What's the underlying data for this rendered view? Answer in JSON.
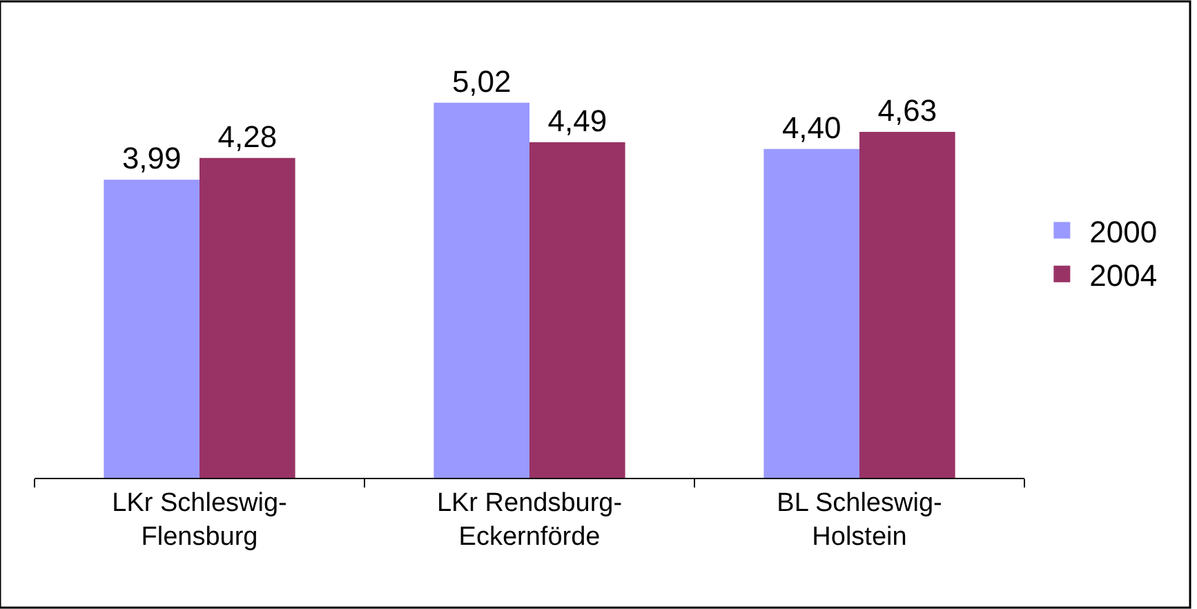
{
  "chart_data": {
    "type": "bar",
    "categories": [
      "LKr Schleswig-\nFlensburg",
      "LKr Rendsburg-\nEckernförde",
      "BL Schleswig-\nHolstein"
    ],
    "series": [
      {
        "name": "2000",
        "color": "#9999ff",
        "values": [
          3.99,
          5.02,
          4.4
        ],
        "value_labels": [
          "3,99",
          "5,02",
          "4,40"
        ]
      },
      {
        "name": "2004",
        "color": "#993366",
        "values": [
          4.28,
          4.49,
          4.63
        ],
        "value_labels": [
          "4,28",
          "4,49",
          "4,63"
        ]
      }
    ],
    "tick_labels": "x",
    "legend": "right"
  }
}
